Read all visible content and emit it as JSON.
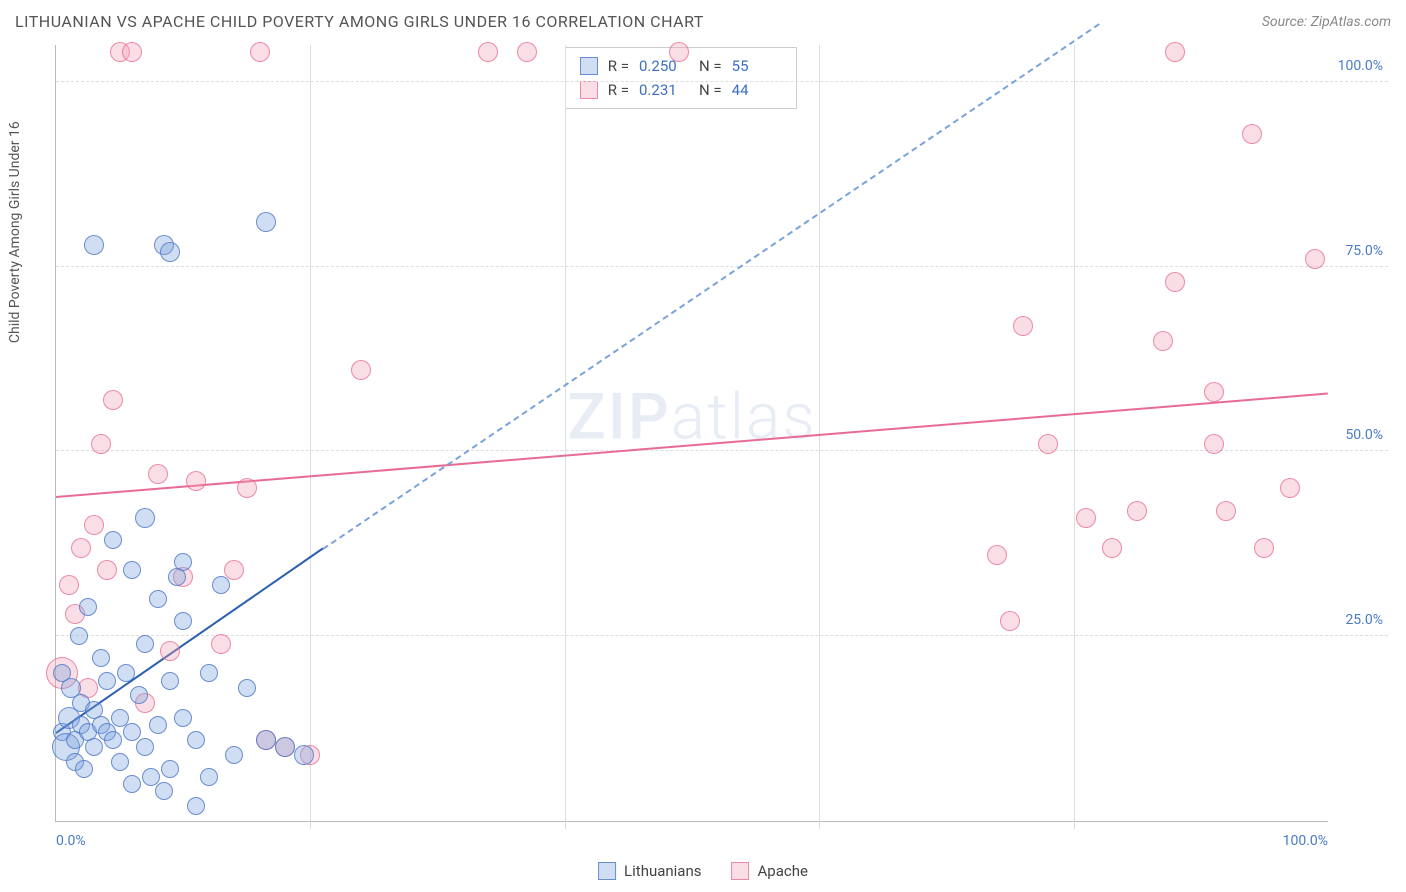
{
  "header": {
    "title": "LITHUANIAN VS APACHE CHILD POVERTY AMONG GIRLS UNDER 16 CORRELATION CHART",
    "source": "Source: ZipAtlas.com"
  },
  "chart": {
    "type": "scatter",
    "y_axis_title": "Child Poverty Among Girls Under 16",
    "xlim": [
      0,
      100
    ],
    "ylim": [
      0,
      105
    ],
    "x_ticks": [
      0,
      20,
      40,
      60,
      80,
      100
    ],
    "y_ticks": [
      25,
      50,
      75,
      100
    ],
    "x_tick_labels": [
      "0.0%",
      "",
      "",
      "",
      "",
      "100.0%"
    ],
    "y_tick_labels": [
      "25.0%",
      "50.0%",
      "75.0%",
      "100.0%"
    ],
    "grid_color": "#dddddd",
    "axis_color": "#bbbbbb",
    "tick_label_color": "#4a7bc8",
    "background_color": "#ffffff",
    "watermark": "ZIPatlas"
  },
  "series": {
    "lithuanians": {
      "label": "Lithuanians",
      "color_fill": "rgba(120,160,220,0.35)",
      "color_stroke": "rgba(80,120,200,0.8)",
      "marker_radius": 9,
      "R": "0.250",
      "N": "55",
      "trend": {
        "x1": 0,
        "y1": 12,
        "x2": 21,
        "y2": 37,
        "dash_to_x": 82,
        "dash_to_y": 108
      },
      "points": [
        {
          "x": 0.5,
          "y": 12,
          "r": 9
        },
        {
          "x": 1,
          "y": 14,
          "r": 11
        },
        {
          "x": 0.8,
          "y": 10,
          "r": 14
        },
        {
          "x": 1.5,
          "y": 11,
          "r": 9
        },
        {
          "x": 2,
          "y": 13,
          "r": 9
        },
        {
          "x": 2,
          "y": 16,
          "r": 9
        },
        {
          "x": 1.2,
          "y": 18,
          "r": 10
        },
        {
          "x": 2.5,
          "y": 12,
          "r": 9
        },
        {
          "x": 3,
          "y": 10,
          "r": 9
        },
        {
          "x": 3,
          "y": 15,
          "r": 9
        },
        {
          "x": 3.5,
          "y": 13,
          "r": 9
        },
        {
          "x": 4,
          "y": 12,
          "r": 9
        },
        {
          "x": 4,
          "y": 19,
          "r": 9
        },
        {
          "x": 4.5,
          "y": 11,
          "r": 9
        },
        {
          "x": 5,
          "y": 14,
          "r": 9
        },
        {
          "x": 5,
          "y": 8,
          "r": 9
        },
        {
          "x": 5.5,
          "y": 20,
          "r": 9
        },
        {
          "x": 6,
          "y": 12,
          "r": 9
        },
        {
          "x": 6,
          "y": 5,
          "r": 9
        },
        {
          "x": 6.5,
          "y": 17,
          "r": 9
        },
        {
          "x": 7,
          "y": 10,
          "r": 9
        },
        {
          "x": 7,
          "y": 24,
          "r": 9
        },
        {
          "x": 7.5,
          "y": 6,
          "r": 9
        },
        {
          "x": 8,
          "y": 13,
          "r": 9
        },
        {
          "x": 8,
          "y": 30,
          "r": 9
        },
        {
          "x": 8.5,
          "y": 4,
          "r": 9
        },
        {
          "x": 9,
          "y": 19,
          "r": 9
        },
        {
          "x": 9,
          "y": 7,
          "r": 9
        },
        {
          "x": 9.5,
          "y": 33,
          "r": 9
        },
        {
          "x": 10,
          "y": 14,
          "r": 9
        },
        {
          "x": 10,
          "y": 27,
          "r": 9
        },
        {
          "x": 11,
          "y": 11,
          "r": 9
        },
        {
          "x": 11,
          "y": 2,
          "r": 9
        },
        {
          "x": 12,
          "y": 20,
          "r": 9
        },
        {
          "x": 12,
          "y": 6,
          "r": 9
        },
        {
          "x": 13,
          "y": 32,
          "r": 9
        },
        {
          "x": 14,
          "y": 9,
          "r": 9
        },
        {
          "x": 15,
          "y": 18,
          "r": 9
        },
        {
          "x": 3,
          "y": 78,
          "r": 10
        },
        {
          "x": 7,
          "y": 41,
          "r": 10
        },
        {
          "x": 8.5,
          "y": 78,
          "r": 10
        },
        {
          "x": 9,
          "y": 77,
          "r": 10
        },
        {
          "x": 10,
          "y": 35,
          "r": 9
        },
        {
          "x": 4.5,
          "y": 38,
          "r": 9
        },
        {
          "x": 2.5,
          "y": 29,
          "r": 9
        },
        {
          "x": 16.5,
          "y": 11,
          "r": 10
        },
        {
          "x": 16.5,
          "y": 81,
          "r": 10
        },
        {
          "x": 18,
          "y": 10,
          "r": 10
        },
        {
          "x": 19.5,
          "y": 9,
          "r": 10
        },
        {
          "x": 3.5,
          "y": 22,
          "r": 9
        },
        {
          "x": 1.8,
          "y": 25,
          "r": 9
        },
        {
          "x": 0.5,
          "y": 20,
          "r": 9
        },
        {
          "x": 1.5,
          "y": 8,
          "r": 9
        },
        {
          "x": 2.2,
          "y": 7,
          "r": 9
        },
        {
          "x": 6,
          "y": 34,
          "r": 9
        }
      ]
    },
    "apache": {
      "label": "Apache",
      "color_fill": "rgba(240,160,180,0.35)",
      "color_stroke": "rgba(230,100,140,0.7)",
      "marker_radius": 10,
      "R": "0.231",
      "N": "44",
      "trend": {
        "x1": 0,
        "y1": 44,
        "x2": 100,
        "y2": 58
      },
      "points": [
        {
          "x": 0.5,
          "y": 20,
          "r": 16
        },
        {
          "x": 1,
          "y": 32,
          "r": 10
        },
        {
          "x": 1.5,
          "y": 28,
          "r": 10
        },
        {
          "x": 2,
          "y": 37,
          "r": 10
        },
        {
          "x": 2.5,
          "y": 18,
          "r": 10
        },
        {
          "x": 3,
          "y": 40,
          "r": 10
        },
        {
          "x": 3.5,
          "y": 51,
          "r": 10
        },
        {
          "x": 4,
          "y": 34,
          "r": 10
        },
        {
          "x": 4.5,
          "y": 57,
          "r": 10
        },
        {
          "x": 5,
          "y": 104,
          "r": 10
        },
        {
          "x": 6,
          "y": 104,
          "r": 10
        },
        {
          "x": 7,
          "y": 16,
          "r": 10
        },
        {
          "x": 8,
          "y": 47,
          "r": 10
        },
        {
          "x": 9,
          "y": 23,
          "r": 10
        },
        {
          "x": 10,
          "y": 33,
          "r": 10
        },
        {
          "x": 11,
          "y": 46,
          "r": 10
        },
        {
          "x": 13,
          "y": 24,
          "r": 10
        },
        {
          "x": 14,
          "y": 34,
          "r": 10
        },
        {
          "x": 15,
          "y": 45,
          "r": 10
        },
        {
          "x": 16,
          "y": 104,
          "r": 10
        },
        {
          "x": 18,
          "y": 10,
          "r": 10
        },
        {
          "x": 20,
          "y": 9,
          "r": 10
        },
        {
          "x": 24,
          "y": 61,
          "r": 10
        },
        {
          "x": 34,
          "y": 104,
          "r": 10
        },
        {
          "x": 37,
          "y": 104,
          "r": 10
        },
        {
          "x": 49,
          "y": 104,
          "r": 10
        },
        {
          "x": 74,
          "y": 36,
          "r": 10
        },
        {
          "x": 75,
          "y": 27,
          "r": 10
        },
        {
          "x": 76,
          "y": 67,
          "r": 10
        },
        {
          "x": 78,
          "y": 51,
          "r": 10
        },
        {
          "x": 81,
          "y": 41,
          "r": 10
        },
        {
          "x": 83,
          "y": 37,
          "r": 10
        },
        {
          "x": 85,
          "y": 42,
          "r": 10
        },
        {
          "x": 87,
          "y": 65,
          "r": 10
        },
        {
          "x": 88,
          "y": 73,
          "r": 10
        },
        {
          "x": 91,
          "y": 51,
          "r": 10
        },
        {
          "x": 91,
          "y": 58,
          "r": 10
        },
        {
          "x": 92,
          "y": 42,
          "r": 10
        },
        {
          "x": 94,
          "y": 93,
          "r": 10
        },
        {
          "x": 95,
          "y": 37,
          "r": 10
        },
        {
          "x": 97,
          "y": 45,
          "r": 10
        },
        {
          "x": 99,
          "y": 76,
          "r": 10
        },
        {
          "x": 88,
          "y": 104,
          "r": 10
        },
        {
          "x": 16.5,
          "y": 11,
          "r": 10
        }
      ]
    }
  },
  "legend_stats": {
    "rows": [
      {
        "swatch": "blue",
        "r_label": "R =",
        "r_value": "0.250",
        "n_label": "N =",
        "n_value": "55"
      },
      {
        "swatch": "pink",
        "r_label": "R =",
        "r_value": "0.231",
        "n_label": "N =",
        "n_value": "44"
      }
    ]
  },
  "bottom_legend": {
    "items": [
      {
        "swatch": "blue",
        "label": "Lithuanians"
      },
      {
        "swatch": "pink",
        "label": "Apache"
      }
    ]
  }
}
